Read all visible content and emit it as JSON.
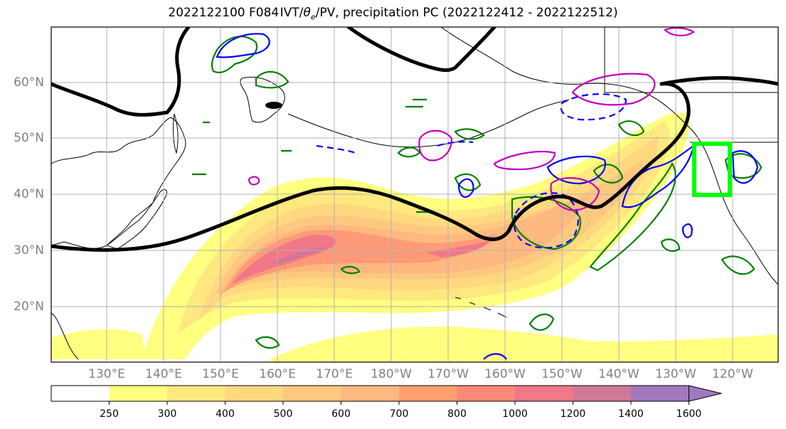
{
  "title": {
    "run": "2022122100",
    "forecast": "F084",
    "fields_prefix": "IVT/",
    "theta_symbol": "θ",
    "theta_sub": "e",
    "fields_suffix": "/PV, precipitation PC",
    "period": "(2022122412 - 2022122512)"
  },
  "lat_labels": [
    "60°N",
    "50°N",
    "40°N",
    "30°N",
    "20°N"
  ],
  "lon_labels": [
    "130°E",
    "140°E",
    "150°E",
    "160°E",
    "170°E",
    "180°W",
    "170°W",
    "160°W",
    "150°W",
    "140°W",
    "130°W",
    "120°W"
  ],
  "colorbar": {
    "ticks": [
      "250",
      "300",
      "400",
      "500",
      "600",
      "700",
      "800",
      "1000",
      "1200",
      "1400",
      "1600"
    ],
    "colors": [
      "#ffffff",
      "#ffff80",
      "#ffe880",
      "#ffd880",
      "#ffc880",
      "#ffb880",
      "#ffa070",
      "#ff8878",
      "#f07888",
      "#d07898",
      "#a078c0"
    ]
  },
  "chart_data": {
    "type": "map",
    "variable": "IVT",
    "colorbar_levels": [
      250,
      300,
      400,
      500,
      600,
      700,
      800,
      1000,
      1200,
      1400,
      1600
    ],
    "colorbar_extend": "max",
    "contour_colors": {
      "jet_pv": "#000000",
      "green": "#008000",
      "blue": "#0000ff",
      "magenta": "#c000c0",
      "target_box": "#00ff00"
    }
  }
}
